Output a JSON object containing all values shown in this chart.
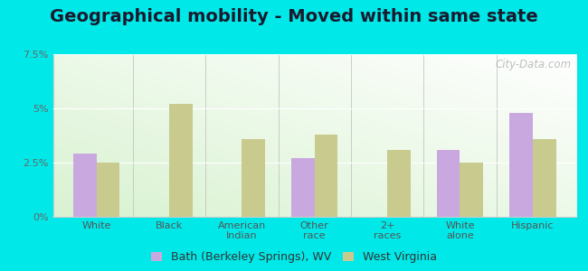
{
  "title": "Geographical mobility - Moved within same state",
  "categories": [
    "White",
    "Black",
    "American\nIndian",
    "Other\nrace",
    "2+\nraces",
    "White\nalone",
    "Hispanic"
  ],
  "bath_values": [
    2.9,
    0.0,
    0.0,
    2.7,
    0.0,
    3.1,
    4.8
  ],
  "wv_values": [
    2.5,
    5.2,
    3.6,
    3.8,
    3.1,
    2.5,
    3.6
  ],
  "bath_color": "#c9a8e0",
  "wv_color": "#c8ca8e",
  "ylim": [
    0,
    7.5
  ],
  "yticks": [
    0,
    2.5,
    5.0,
    7.5
  ],
  "ytick_labels": [
    "0%",
    "2.5%",
    "5%",
    "7.5%"
  ],
  "outer_background": "#00e8e8",
  "title_fontsize": 14,
  "bar_width": 0.32,
  "legend_label_bath": "Bath (Berkeley Springs), WV",
  "legend_label_wv": "West Virginia",
  "watermark": "City-Data.com"
}
